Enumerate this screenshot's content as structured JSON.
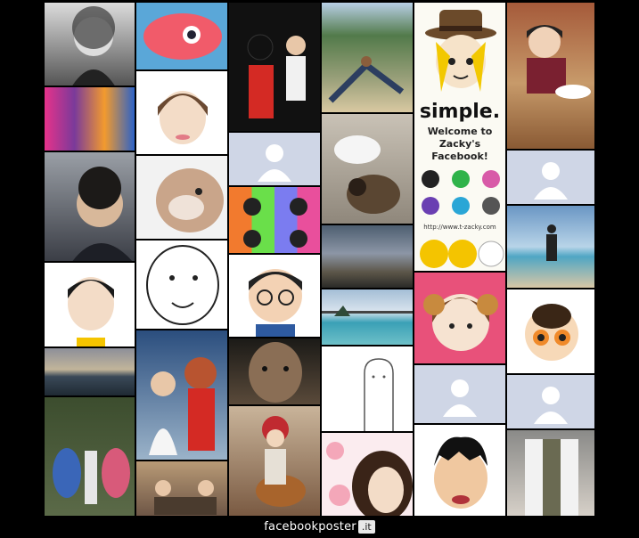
{
  "poster": {
    "brand_text": "facebookposter",
    "brand_suffix": ".it"
  },
  "featured_tile": {
    "title": "simple.",
    "subtitle": "Welcome to Zacky's Facebook!",
    "url": "http://www.t-zacky.com"
  },
  "tiles": [
    {
      "name": "photo-man-glasses-bw"
    },
    {
      "name": "photo-koi-drawing"
    },
    {
      "name": "photo-mickey-mouse"
    },
    {
      "name": "photo-yoga-beach"
    },
    {
      "name": "photo-woman-restaurant"
    },
    {
      "name": "photo-pencil-toys"
    },
    {
      "name": "photo-mii-avatar-woman"
    },
    {
      "name": "photo-default-profile"
    },
    {
      "name": "photo-cats-sleeping"
    },
    {
      "name": "photo-default-profile"
    },
    {
      "name": "photo-man-glasses"
    },
    {
      "name": "photo-bulldog"
    },
    {
      "name": "photo-warhol-portrait"
    },
    {
      "name": "photo-sunset-sky"
    },
    {
      "name": "photo-person-on-beach"
    },
    {
      "name": "photo-mii-avatar"
    },
    {
      "name": "photo-sketch-face"
    },
    {
      "name": "photo-cartoon-glasses"
    },
    {
      "name": "photo-bridge-sea"
    },
    {
      "name": "photo-anime-girl"
    },
    {
      "name": "photo-puff-girl"
    },
    {
      "name": "photo-sea-horizon"
    },
    {
      "name": "photo-elastigirl"
    },
    {
      "name": "photo-closeup-face"
    },
    {
      "name": "photo-line-drawing"
    },
    {
      "name": "photo-default-profile"
    },
    {
      "name": "photo-default-profile"
    },
    {
      "name": "photo-stitch-characters"
    },
    {
      "name": "photo-girl-guitar"
    },
    {
      "name": "photo-flower-girl"
    },
    {
      "name": "photo-cartoon-man"
    },
    {
      "name": "photo-man-jacket"
    },
    {
      "name": "photo-family-dinner"
    }
  ]
}
